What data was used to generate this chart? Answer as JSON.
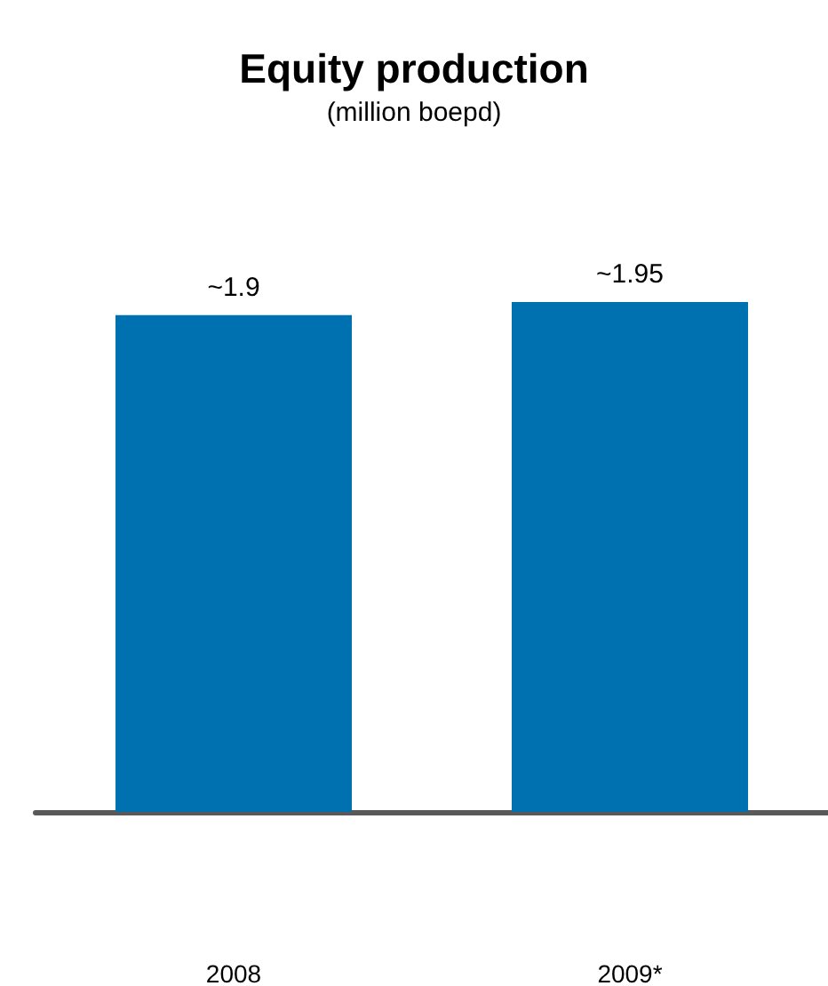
{
  "chart_data": {
    "type": "bar",
    "title": "Equity production",
    "subtitle": "(million boepd)",
    "categories": [
      "2008",
      "2009*"
    ],
    "values": [
      1.9,
      1.95
    ],
    "value_labels": [
      "~1.9",
      "~1.95"
    ],
    "color": "#0071b0"
  }
}
